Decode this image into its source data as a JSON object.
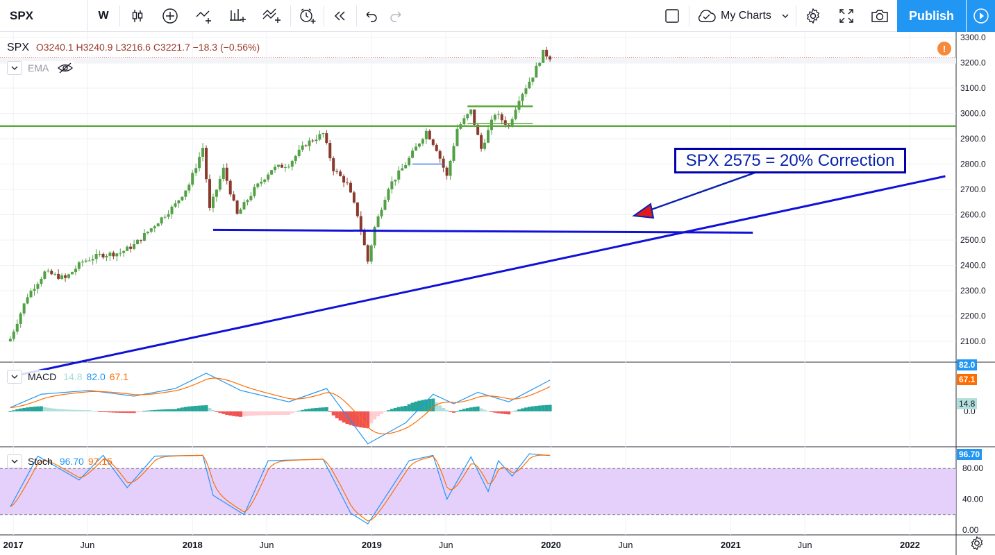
{
  "toolbar": {
    "symbol": "SPX",
    "interval": "W",
    "my_charts_label": "My Charts",
    "publish_label": "Publish"
  },
  "main_legend": {
    "symbol": "SPX",
    "open": "O3240.1",
    "high": "H3240.9",
    "low": "L3216.6",
    "close": "C3221.7",
    "change": "−18.3 (−0.56%)",
    "ema_label": "EMA"
  },
  "annotation": {
    "text": "SPX 2575 = 20% Correction"
  },
  "macd_legend": {
    "name": "MACD",
    "hist": "14.8",
    "macd": "82.0",
    "signal": "67.1"
  },
  "stoch_legend": {
    "name": "Stoch",
    "k": "96.70",
    "d": "97.15"
  },
  "price_axis": [
    "3300.0",
    "3200.0",
    "3100.0",
    "3000.0",
    "2900.0",
    "2800.0",
    "2700.0",
    "2600.0",
    "2500.0",
    "2400.0",
    "2300.0",
    "2200.0",
    "2100.0"
  ],
  "macd_axis": {
    "macd_tag": "82.0",
    "signal_tag": "67.1",
    "hist_tag": "14.8",
    "zero_label": "0.0"
  },
  "stoch_axis": {
    "k_tag": "96.70",
    "labels": [
      "80.00",
      "40.00",
      "0.00"
    ]
  },
  "time_axis": [
    "2017",
    "Jun",
    "2018",
    "Jun",
    "2019",
    "Jun",
    "2020",
    "Jun",
    "2021",
    "Jun",
    "2022"
  ],
  "colors": {
    "up": "#26a69a",
    "down": "#ef5350",
    "candle_up_body": "#53a046",
    "candle_down_body": "#8a3a2c",
    "trend_blue": "#1010d8",
    "resistance_green": "#5aaa3c",
    "macd_line": "#2196f3",
    "signal_line": "#ff6d00",
    "stoch_band": "#e1c8fb",
    "publish": "#2196f3"
  },
  "chart_data": {
    "type": "candlestick",
    "interval": "weekly",
    "y_range": [
      2050,
      3320
    ],
    "close_path": [
      [
        "2016-12-26",
        2110
      ],
      [
        "2017-01-30",
        2280
      ],
      [
        "2017-03-06",
        2372
      ],
      [
        "2017-04-17",
        2348
      ],
      [
        "2017-05-22",
        2415
      ],
      [
        "2017-06-26",
        2440
      ],
      [
        "2017-08-07",
        2450
      ],
      [
        "2017-09-04",
        2480
      ],
      [
        "2017-10-16",
        2560
      ],
      [
        "2017-11-27",
        2640
      ],
      [
        "2017-12-25",
        2720
      ],
      [
        "2018-01-22",
        2865
      ],
      [
        "2018-02-05",
        2620
      ],
      [
        "2018-03-05",
        2780
      ],
      [
        "2018-04-02",
        2600
      ],
      [
        "2018-05-07",
        2700
      ],
      [
        "2018-06-11",
        2780
      ],
      [
        "2018-07-16",
        2800
      ],
      [
        "2018-08-20",
        2880
      ],
      [
        "2018-09-24",
        2920
      ],
      [
        "2018-10-15",
        2780
      ],
      [
        "2018-11-12",
        2720
      ],
      [
        "2018-12-03",
        2600
      ],
      [
        "2018-12-24",
        2416
      ],
      [
        "2019-01-07",
        2550
      ],
      [
        "2019-02-04",
        2710
      ],
      [
        "2019-03-11",
        2800
      ],
      [
        "2019-04-22",
        2930
      ],
      [
        "2019-05-13",
        2860
      ],
      [
        "2019-06-03",
        2750
      ],
      [
        "2019-06-24",
        2940
      ],
      [
        "2019-07-22",
        3010
      ],
      [
        "2019-08-12",
        2860
      ],
      [
        "2019-09-09",
        3000
      ],
      [
        "2019-10-07",
        2950
      ],
      [
        "2019-10-28",
        3060
      ],
      [
        "2019-11-25",
        3150
      ],
      [
        "2019-12-16",
        3240
      ],
      [
        "2019-12-30",
        3221.7
      ]
    ],
    "macd_path": [
      [
        "2016-12-26",
        10
      ],
      [
        "2017-02-27",
        45
      ],
      [
        "2017-06-05",
        55
      ],
      [
        "2017-09-04",
        40
      ],
      [
        "2017-11-27",
        60
      ],
      [
        "2018-01-29",
        100
      ],
      [
        "2018-04-09",
        55
      ],
      [
        "2018-07-16",
        25
      ],
      [
        "2018-10-01",
        60
      ],
      [
        "2018-12-24",
        -85
      ],
      [
        "2019-03-11",
        -30
      ],
      [
        "2019-05-06",
        45
      ],
      [
        "2019-06-17",
        20
      ],
      [
        "2019-08-05",
        50
      ],
      [
        "2019-10-07",
        25
      ],
      [
        "2019-12-30",
        82
      ]
    ],
    "stoch_k_path": [
      [
        "2016-12-26",
        30
      ],
      [
        "2017-02-20",
        96
      ],
      [
        "2017-05-15",
        65
      ],
      [
        "2017-07-03",
        97
      ],
      [
        "2017-08-21",
        55
      ],
      [
        "2017-10-16",
        96
      ],
      [
        "2018-01-22",
        97
      ],
      [
        "2018-02-12",
        45
      ],
      [
        "2018-04-16",
        20
      ],
      [
        "2018-06-04",
        90
      ],
      [
        "2018-09-24",
        92
      ],
      [
        "2018-11-19",
        22
      ],
      [
        "2018-12-24",
        8
      ],
      [
        "2019-03-18",
        90
      ],
      [
        "2019-05-06",
        97
      ],
      [
        "2019-06-03",
        40
      ],
      [
        "2019-07-22",
        95
      ],
      [
        "2019-08-26",
        50
      ],
      [
        "2019-09-16",
        90
      ],
      [
        "2019-10-14",
        70
      ],
      [
        "2019-11-18",
        99
      ],
      [
        "2019-12-30",
        96.7
      ]
    ],
    "levels": {
      "green_resistance": 2950,
      "green_short": 3028,
      "blue_horizontal": 2540,
      "blue_small": 2800,
      "trendline_start": [
        "2016-12-26",
        1960
      ],
      "trendline_end": [
        "2022-03-14",
        2752
      ],
      "arrow_from": [
        1090,
        248
      ],
      "arrow_to": [
        913,
        311
      ]
    },
    "stoch_bands": [
      20,
      80
    ]
  }
}
